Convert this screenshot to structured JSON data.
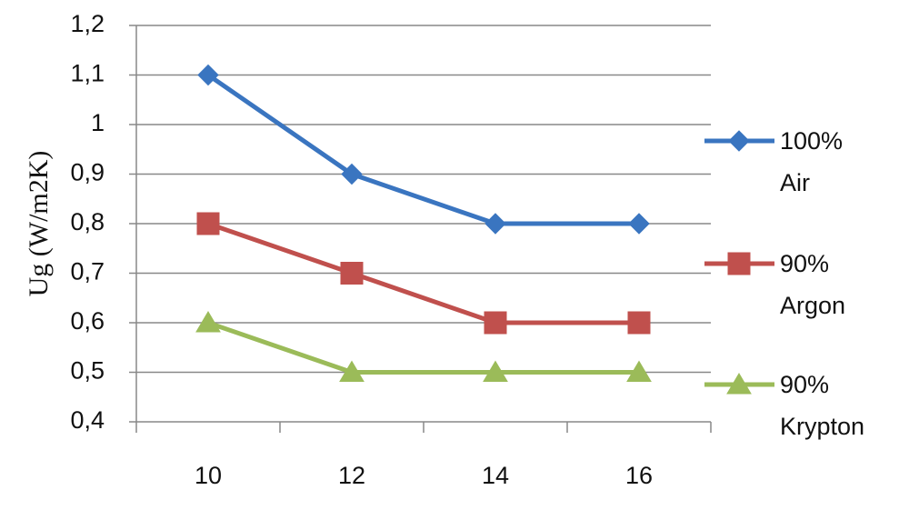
{
  "chart_data": {
    "type": "line",
    "y_label": "Ug (W/m2K)",
    "categories": [
      "10",
      "12",
      "14",
      "16"
    ],
    "series": [
      {
        "name": "100% Air",
        "color": "#3a75c0",
        "marker": "diamond",
        "values": [
          1.1,
          0.9,
          0.8,
          0.8
        ]
      },
      {
        "name": "90% Argon",
        "color": "#c0504d",
        "marker": "square",
        "values": [
          0.8,
          0.7,
          0.6,
          0.6
        ]
      },
      {
        "name": "90% Krypton",
        "color": "#9bbb59",
        "marker": "triangle",
        "values": [
          0.6,
          0.5,
          0.5,
          0.5
        ]
      }
    ],
    "ylim": [
      0.4,
      1.2
    ],
    "yticks": [
      {
        "value": 0.4,
        "label": "0,4"
      },
      {
        "value": 0.5,
        "label": "0,5"
      },
      {
        "value": 0.6,
        "label": "0,6"
      },
      {
        "value": 0.7,
        "label": "0,7"
      },
      {
        "value": 0.8,
        "label": "0,8"
      },
      {
        "value": 0.9,
        "label": "0,9"
      },
      1,
      {
        "value": 1.1,
        "label": "1,1"
      },
      {
        "value": 1.2,
        "label": "1,2"
      }
    ],
    "grid": true,
    "legend": "right"
  }
}
